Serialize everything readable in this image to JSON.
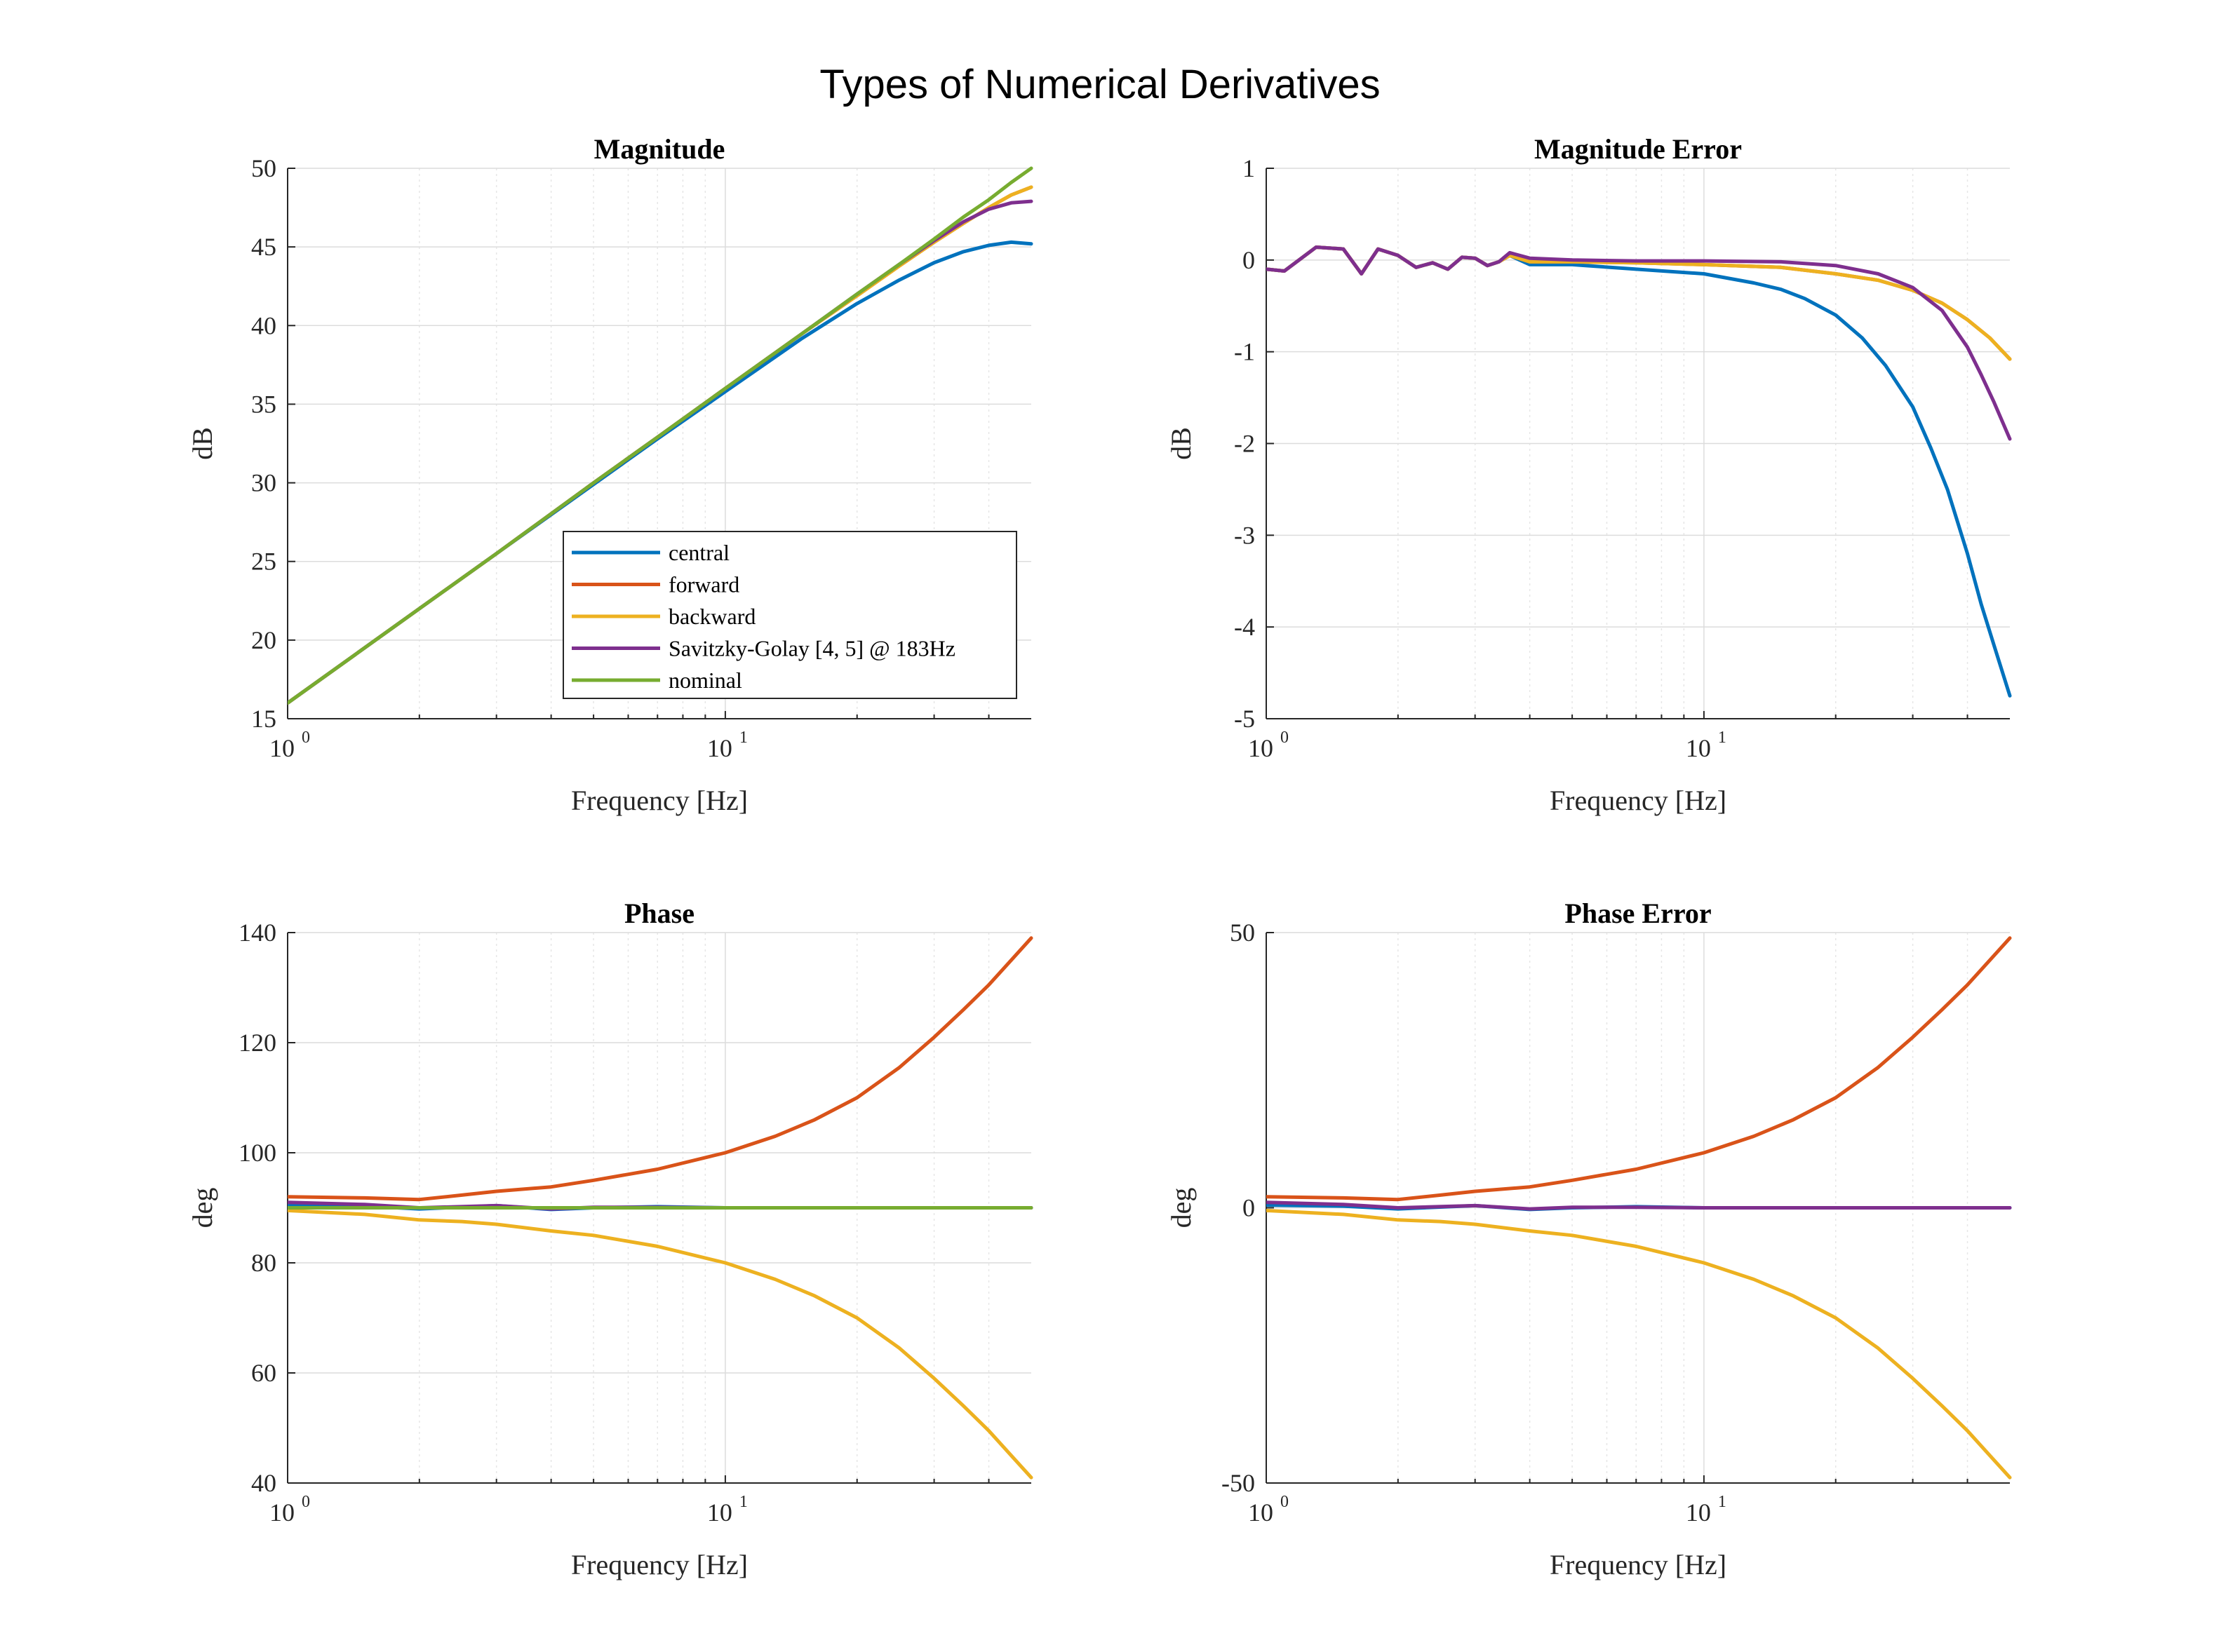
{
  "figure_title": "Types of Numerical Derivatives",
  "colors": {
    "central": "#0072BD",
    "forward": "#D95319",
    "backward": "#EDB120",
    "savitzky_golay": "#7E2F8E",
    "nominal": "#77AC30"
  },
  "legend": {
    "entries": [
      {
        "label": "central",
        "color": "#0072BD"
      },
      {
        "label": "forward",
        "color": "#D95319"
      },
      {
        "label": "backward",
        "color": "#EDB120"
      },
      {
        "label": "Savitzky-Golay [4, 5] @ 183Hz",
        "color": "#7E2F8E"
      },
      {
        "label": "nominal",
        "color": "#77AC30"
      }
    ],
    "location": "inside lower-right of Magnitude panel"
  },
  "chart_data": [
    {
      "id": "magnitude",
      "type": "line",
      "title": "Magnitude",
      "xlabel": "Frequency [Hz]",
      "ylabel": "dB",
      "xscale": "log",
      "xlim": [
        1,
        50
      ],
      "ylim": [
        15,
        50
      ],
      "xticks": [
        {
          "base": "10",
          "exp": "0"
        },
        {
          "base": "10",
          "exp": "1"
        }
      ],
      "yticks": [
        "15",
        "20",
        "25",
        "30",
        "35",
        "40",
        "45",
        "50"
      ],
      "grid": true,
      "series": [
        {
          "name": "central",
          "x": [
            1,
            2,
            3,
            5,
            7,
            10,
            15,
            20,
            25,
            30,
            35,
            40,
            45,
            50
          ],
          "y": [
            16.0,
            22.0,
            25.5,
            29.9,
            32.8,
            35.8,
            39.2,
            41.4,
            42.9,
            44.0,
            44.7,
            45.1,
            45.3,
            45.2
          ]
        },
        {
          "name": "forward",
          "x": [
            1,
            2,
            3,
            5,
            7,
            10,
            15,
            20,
            25,
            30,
            35,
            40,
            45,
            50
          ],
          "y": [
            16.0,
            22.0,
            25.5,
            30.0,
            32.9,
            36.0,
            39.5,
            41.9,
            43.8,
            45.3,
            46.5,
            47.5,
            48.3,
            48.8
          ]
        },
        {
          "name": "backward",
          "x": [
            1,
            2,
            3,
            5,
            7,
            10,
            15,
            20,
            25,
            30,
            35,
            40,
            45,
            50
          ],
          "y": [
            16.0,
            22.0,
            25.5,
            30.0,
            32.9,
            36.0,
            39.5,
            41.9,
            43.8,
            45.3,
            46.5,
            47.5,
            48.3,
            48.8
          ]
        },
        {
          "name": "Savitzky-Golay [4, 5] @ 183Hz",
          "x": [
            1,
            2,
            3,
            5,
            7,
            10,
            15,
            20,
            25,
            30,
            35,
            40,
            45,
            50
          ],
          "y": [
            16.0,
            22.0,
            25.5,
            30.0,
            32.9,
            36.0,
            39.5,
            42.0,
            43.9,
            45.4,
            46.6,
            47.4,
            47.8,
            47.9
          ]
        },
        {
          "name": "nominal",
          "x": [
            1,
            2,
            3,
            5,
            7,
            10,
            15,
            20,
            25,
            30,
            35,
            40,
            45,
            50
          ],
          "y": [
            16.0,
            22.0,
            25.5,
            30.0,
            32.9,
            36.0,
            39.5,
            42.0,
            43.9,
            45.5,
            46.9,
            48.0,
            49.1,
            50.0
          ]
        }
      ]
    },
    {
      "id": "magnitude_error",
      "type": "line",
      "title": "Magnitude Error",
      "xlabel": "Frequency [Hz]",
      "ylabel": "dB",
      "xscale": "log",
      "xlim": [
        1,
        50
      ],
      "ylim": [
        -5,
        1
      ],
      "xticks": [
        {
          "base": "10",
          "exp": "0"
        },
        {
          "base": "10",
          "exp": "1"
        }
      ],
      "yticks": [
        "-5",
        "-4",
        "-3",
        "-2",
        "-1",
        "0",
        "1"
      ],
      "grid": true,
      "series": [
        {
          "name": "central",
          "x": [
            1,
            1.1,
            1.3,
            1.5,
            1.65,
            1.8,
            2,
            2.2,
            2.4,
            2.6,
            2.8,
            3,
            3.2,
            3.4,
            3.6,
            4,
            5,
            7,
            10,
            13,
            15,
            17,
            20,
            23,
            26,
            30,
            33,
            36,
            40,
            43,
            46,
            50
          ],
          "y": [
            -0.1,
            -0.12,
            0.14,
            0.12,
            -0.15,
            0.12,
            0.05,
            -0.08,
            -0.03,
            -0.1,
            0.03,
            0.02,
            -0.06,
            -0.02,
            0.05,
            -0.05,
            -0.05,
            -0.1,
            -0.15,
            -0.25,
            -0.32,
            -0.42,
            -0.6,
            -0.85,
            -1.15,
            -1.6,
            -2.05,
            -2.5,
            -3.2,
            -3.75,
            -4.2,
            -4.75
          ]
        },
        {
          "name": "forward",
          "x": [
            1,
            1.1,
            1.3,
            1.5,
            1.65,
            1.8,
            2,
            2.2,
            2.4,
            2.6,
            2.8,
            3,
            3.2,
            3.4,
            3.6,
            4,
            5,
            7,
            10,
            15,
            20,
            25,
            30,
            35,
            40,
            45,
            50
          ],
          "y": [
            -0.1,
            -0.12,
            0.14,
            0.12,
            -0.15,
            0.12,
            0.05,
            -0.08,
            -0.03,
            -0.1,
            0.03,
            0.02,
            -0.06,
            -0.02,
            0.05,
            -0.02,
            -0.02,
            -0.03,
            -0.05,
            -0.08,
            -0.15,
            -0.22,
            -0.33,
            -0.47,
            -0.65,
            -0.85,
            -1.08
          ]
        },
        {
          "name": "backward",
          "x": [
            1,
            1.1,
            1.3,
            1.5,
            1.65,
            1.8,
            2,
            2.2,
            2.4,
            2.6,
            2.8,
            3,
            3.2,
            3.4,
            3.6,
            4,
            5,
            7,
            10,
            15,
            20,
            25,
            30,
            35,
            40,
            45,
            50
          ],
          "y": [
            -0.1,
            -0.12,
            0.14,
            0.12,
            -0.15,
            0.12,
            0.05,
            -0.08,
            -0.03,
            -0.1,
            0.03,
            0.02,
            -0.06,
            -0.02,
            0.05,
            -0.02,
            -0.02,
            -0.03,
            -0.05,
            -0.08,
            -0.15,
            -0.22,
            -0.33,
            -0.47,
            -0.65,
            -0.85,
            -1.08
          ]
        },
        {
          "name": "Savitzky-Golay [4, 5] @ 183Hz",
          "x": [
            1,
            1.1,
            1.3,
            1.5,
            1.65,
            1.8,
            2,
            2.2,
            2.4,
            2.6,
            2.8,
            3,
            3.2,
            3.4,
            3.6,
            4,
            5,
            7,
            10,
            15,
            20,
            25,
            30,
            35,
            40,
            43,
            46,
            50
          ],
          "y": [
            -0.1,
            -0.12,
            0.14,
            0.12,
            -0.15,
            0.12,
            0.05,
            -0.08,
            -0.03,
            -0.1,
            0.03,
            0.02,
            -0.06,
            -0.02,
            0.08,
            0.02,
            0.0,
            -0.01,
            -0.01,
            -0.02,
            -0.06,
            -0.15,
            -0.3,
            -0.55,
            -0.95,
            -1.25,
            -1.55,
            -1.95
          ]
        }
      ]
    },
    {
      "id": "phase",
      "type": "line",
      "title": "Phase",
      "xlabel": "Frequency [Hz]",
      "ylabel": "deg",
      "xscale": "log",
      "xlim": [
        1,
        50
      ],
      "ylim": [
        40,
        140
      ],
      "xticks": [
        {
          "base": "10",
          "exp": "0"
        },
        {
          "base": "10",
          "exp": "1"
        }
      ],
      "yticks": [
        "40",
        "60",
        "80",
        "100",
        "120",
        "140"
      ],
      "grid": true,
      "series": [
        {
          "name": "central",
          "x": [
            1,
            1.5,
            2,
            3,
            4,
            5,
            7,
            10,
            20,
            50
          ],
          "y": [
            90.5,
            90.3,
            89.8,
            90.4,
            89.7,
            90.0,
            90.2,
            90.0,
            90.0,
            90.0
          ]
        },
        {
          "name": "forward",
          "x": [
            1,
            1.5,
            2,
            2.5,
            3,
            4,
            5,
            7,
            10,
            13,
            16,
            20,
            25,
            30,
            35,
            40,
            45,
            50
          ],
          "y": [
            92.0,
            91.8,
            91.5,
            92.3,
            93.0,
            93.8,
            95.0,
            97.0,
            100.0,
            103.0,
            106.0,
            110.0,
            115.5,
            121.0,
            126.0,
            130.5,
            135.0,
            139.0
          ]
        },
        {
          "name": "backward",
          "x": [
            1,
            1.5,
            2,
            2.5,
            3,
            4,
            5,
            7,
            10,
            13,
            16,
            20,
            25,
            30,
            35,
            40,
            45,
            50
          ],
          "y": [
            89.5,
            88.8,
            87.8,
            87.5,
            87.0,
            85.8,
            85.0,
            83.0,
            80.0,
            77.0,
            74.0,
            70.0,
            64.5,
            59.0,
            54.0,
            49.5,
            45.0,
            41.0
          ]
        },
        {
          "name": "Savitzky-Golay [4, 5] @ 183Hz",
          "x": [
            1,
            1.5,
            2,
            3,
            4,
            5,
            7,
            10,
            20,
            50
          ],
          "y": [
            91.0,
            90.6,
            90.0,
            90.4,
            89.8,
            90.1,
            90.1,
            90.0,
            90.0,
            90.0
          ]
        },
        {
          "name": "nominal",
          "x": [
            1,
            50
          ],
          "y": [
            90.0,
            90.0
          ]
        }
      ]
    },
    {
      "id": "phase_error",
      "type": "line",
      "title": "Phase Error",
      "xlabel": "Frequency [Hz]",
      "ylabel": "deg",
      "xscale": "log",
      "xlim": [
        1,
        50
      ],
      "ylim": [
        -50,
        50
      ],
      "xticks": [
        {
          "base": "10",
          "exp": "0"
        },
        {
          "base": "10",
          "exp": "1"
        }
      ],
      "yticks": [
        "-50",
        "0",
        "50"
      ],
      "grid": true,
      "series": [
        {
          "name": "central",
          "x": [
            1,
            1.5,
            2,
            3,
            4,
            5,
            7,
            10,
            20,
            50
          ],
          "y": [
            0.5,
            0.3,
            -0.2,
            0.4,
            -0.3,
            0.0,
            0.2,
            0.0,
            0.0,
            0.0
          ]
        },
        {
          "name": "forward",
          "x": [
            1,
            1.5,
            2,
            2.5,
            3,
            4,
            5,
            7,
            10,
            13,
            16,
            20,
            25,
            30,
            35,
            40,
            45,
            50
          ],
          "y": [
            2.0,
            1.8,
            1.5,
            2.3,
            3.0,
            3.8,
            5.0,
            7.0,
            10.0,
            13.0,
            16.0,
            20.0,
            25.5,
            31.0,
            36.0,
            40.5,
            45.0,
            49.0
          ]
        },
        {
          "name": "backward",
          "x": [
            1,
            1.5,
            2,
            2.5,
            3,
            4,
            5,
            7,
            10,
            13,
            16,
            20,
            25,
            30,
            35,
            40,
            45,
            50
          ],
          "y": [
            -0.5,
            -1.2,
            -2.2,
            -2.5,
            -3.0,
            -4.2,
            -5.0,
            -7.0,
            -10.0,
            -13.0,
            -16.0,
            -20.0,
            -25.5,
            -31.0,
            -36.0,
            -40.5,
            -45.0,
            -49.0
          ]
        },
        {
          "name": "Savitzky-Golay [4, 5] @ 183Hz",
          "x": [
            1,
            1.5,
            2,
            3,
            4,
            5,
            7,
            10,
            20,
            50
          ],
          "y": [
            1.0,
            0.6,
            0.0,
            0.4,
            -0.2,
            0.1,
            0.1,
            0.0,
            0.0,
            0.0
          ]
        }
      ]
    }
  ]
}
